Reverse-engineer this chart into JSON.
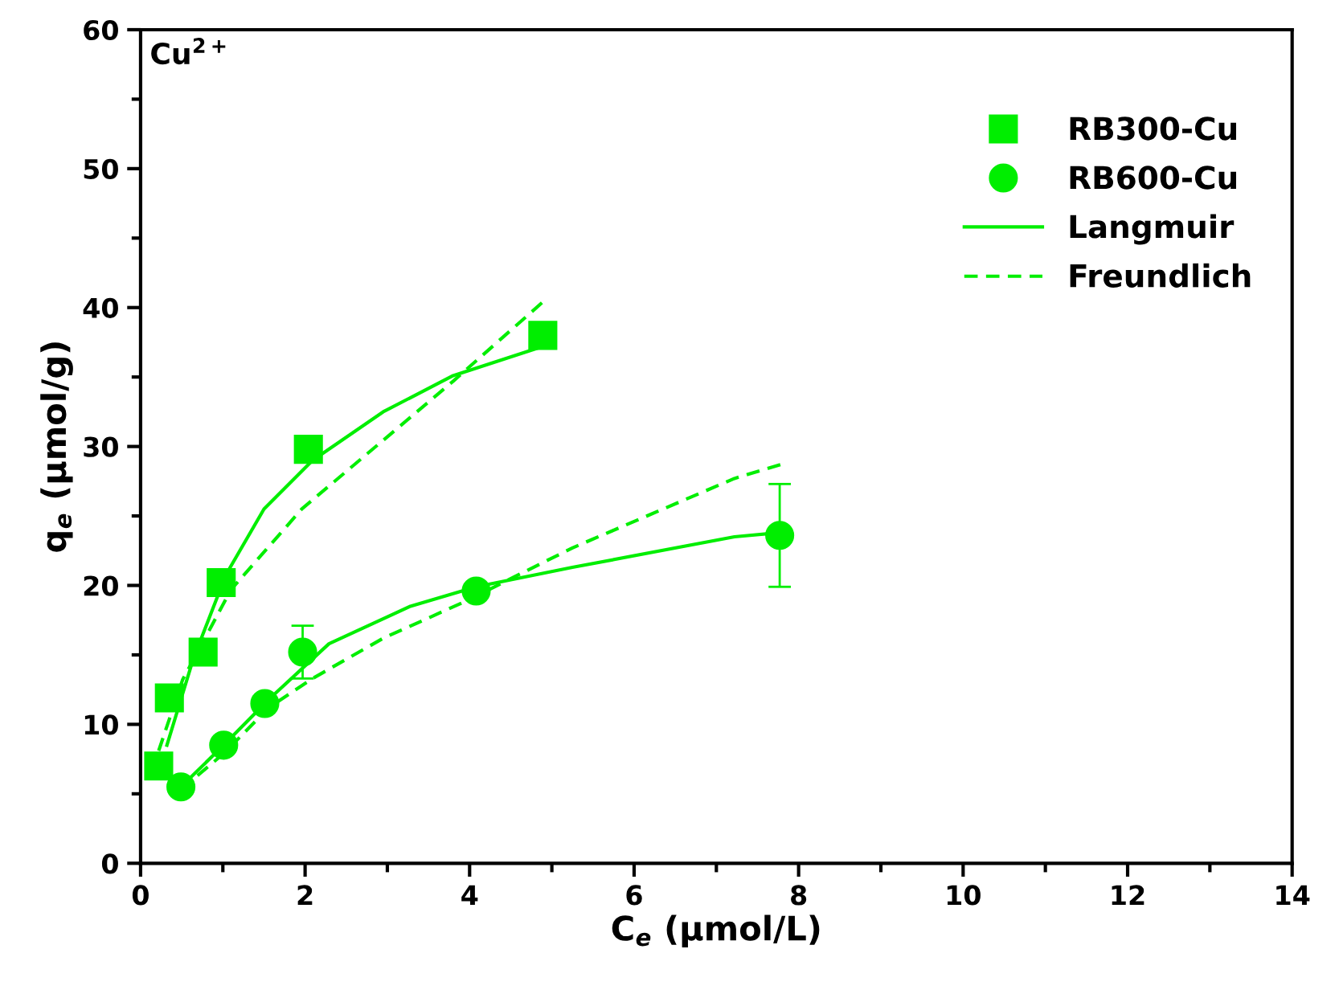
{
  "chart_data": {
    "type": "scatter",
    "xlabel": "C$_{e}$ (µmol/L)",
    "ylabel": "q$_{e}$ (µmol/g)",
    "annotations": [
      "Cu$^{2+}$"
    ],
    "xlim": [
      0,
      14
    ],
    "xticks": [
      0,
      2,
      4,
      6,
      8,
      10,
      12,
      14
    ],
    "ylim": [
      0,
      60
    ],
    "yticks": [
      0,
      10,
      20,
      30,
      40,
      50,
      60
    ],
    "grid": false,
    "legend": "top right",
    "series": [
      {
        "name": "RB300-Cu",
        "marker": "square",
        "color": "#00ee00",
        "x": [
          0.22,
          0.35,
          0.76,
          0.98,
          2.04,
          4.89
        ],
        "values": [
          7.0,
          11.9,
          15.2,
          20.2,
          29.8,
          38.0
        ]
      },
      {
        "name": "RB600-Cu",
        "marker": "circle",
        "color": "#00ee00",
        "x": [
          0.49,
          1.01,
          1.51,
          1.97,
          4.08,
          7.77
        ],
        "values": [
          5.5,
          8.5,
          11.5,
          15.2,
          19.6,
          23.6
        ],
        "errors": [
          null,
          null,
          null,
          1.9,
          null,
          3.7
        ]
      },
      {
        "name": "Langmuir",
        "type": "line",
        "line_style": "solid",
        "color": "#00ee00",
        "x": [
          0.32,
          0.64,
          1.04,
          1.5,
          2.09,
          2.95,
          3.8,
          4.89
        ],
        "values": [
          8.5,
          14.7,
          20.8,
          25.5,
          29.0,
          32.5,
          35.1,
          37.2
        ]
      },
      {
        "name": "Freundlich",
        "type": "line",
        "line_style": "dashed",
        "color": "#00ee00",
        "x": [
          0.22,
          0.51,
          1.1,
          1.96,
          2.88,
          3.8,
          4.89
        ],
        "values": [
          8.1,
          13.2,
          19.7,
          25.5,
          30.1,
          34.7,
          40.4
        ]
      },
      {
        "type": "line",
        "line_style": "solid",
        "color": "#00ee00",
        "x": [
          0.49,
          1.01,
          1.56,
          2.29,
          3.28,
          4.08,
          5.25,
          7.22,
          7.77
        ],
        "values": [
          5.5,
          8.5,
          11.8,
          15.8,
          18.5,
          19.9,
          21.3,
          23.5,
          23.8
        ]
      },
      {
        "type": "line",
        "line_style": "dashed",
        "color": "#00ee00",
        "x": [
          0.49,
          1.01,
          1.56,
          2.09,
          2.95,
          3.93,
          5.25,
          7.22,
          7.78
        ],
        "values": [
          5.3,
          7.9,
          11.2,
          13.3,
          16.2,
          18.8,
          22.7,
          27.7,
          28.7
        ]
      }
    ]
  }
}
